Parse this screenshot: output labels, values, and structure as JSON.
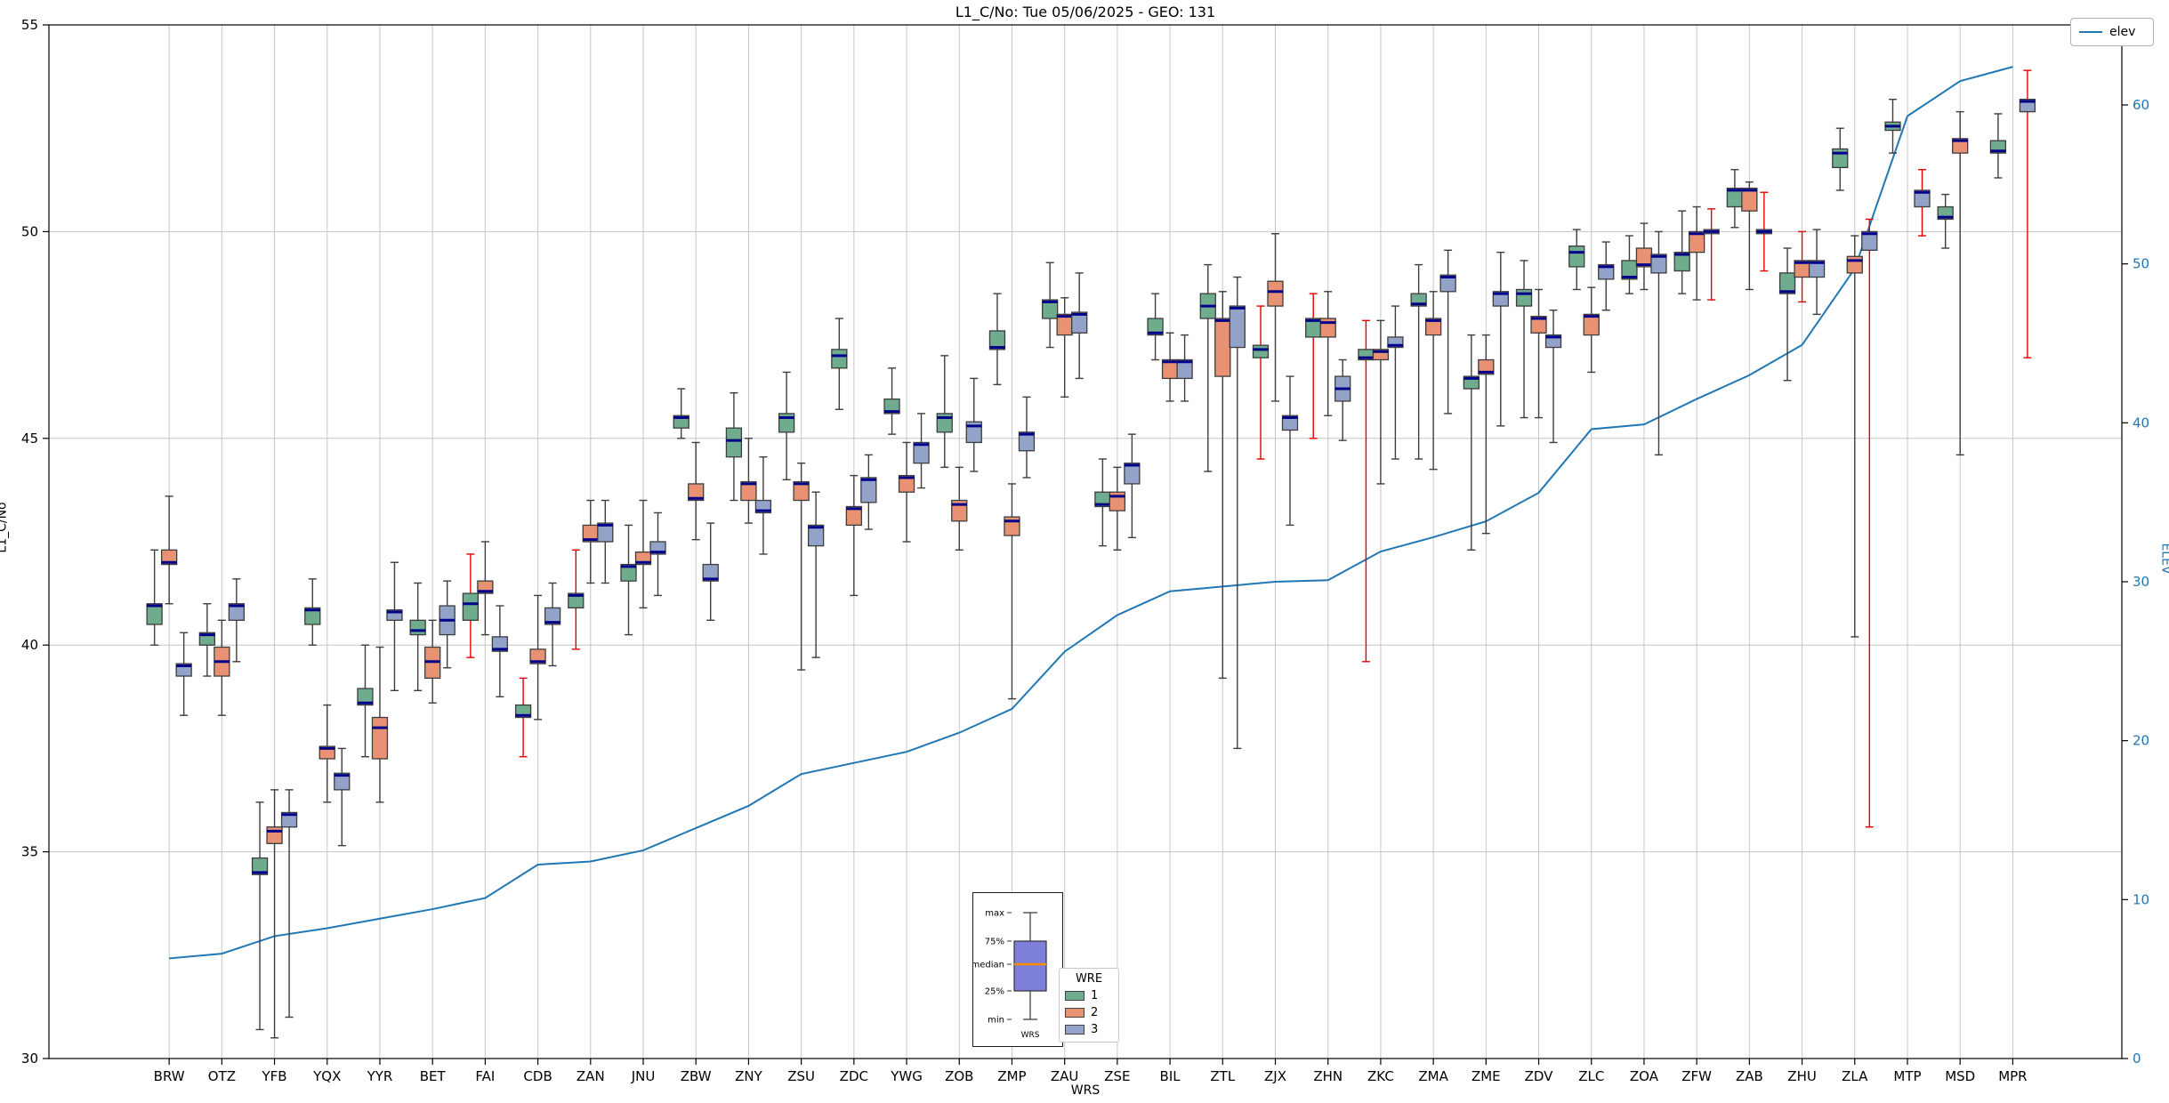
{
  "title": "L1_C/No: Tue 05/06/2025 - GEO: 131",
  "axes": {
    "y_left": {
      "label": "L1_C/No",
      "ticks": [
        30,
        35,
        40,
        45,
        50,
        55
      ],
      "range": [
        30,
        55
      ]
    },
    "y_right": {
      "label": "ELEV",
      "ticks": [
        0,
        10,
        20,
        30,
        40,
        50,
        60
      ],
      "range": [
        0,
        65
      ],
      "color": "#1f77b4"
    },
    "x": {
      "label": "WRS"
    }
  },
  "legend_elev": {
    "label": "elev",
    "line_color": "#1f77b4"
  },
  "legend_wre": {
    "title": "WRE",
    "items": [
      {
        "label": "1",
        "color": "#6fab8d"
      },
      {
        "label": "2",
        "color": "#e99273"
      },
      {
        "label": "3",
        "color": "#93a2c8"
      }
    ]
  },
  "inset": {
    "labels": [
      "max",
      "75%",
      "median",
      "25%",
      "min"
    ],
    "xlabel": "WRS",
    "box_color": "#7e7fd9",
    "median_color": "#ff8c00"
  },
  "chart_data": {
    "type": "boxplot+line",
    "title": "L1_C/No: Tue 05/06/2025 - GEO: 131",
    "xlabel": "WRS",
    "ylabel_left": "L1_C/No",
    "ylabel_right": "ELEV",
    "ylim_left": [
      30,
      55
    ],
    "ylim_right": [
      0,
      65
    ],
    "grid": true,
    "median_color": "#00008b",
    "whisker_color": "#3d3d3d",
    "red_whisker_color": "#e50000",
    "categories": [
      "BRW",
      "OTZ",
      "YFB",
      "YQX",
      "YYR",
      "BET",
      "FAI",
      "CDB",
      "ZAN",
      "JNU",
      "ZBW",
      "ZNY",
      "ZSU",
      "ZDC",
      "YWG",
      "ZOB",
      "ZMP",
      "ZAU",
      "ZSE",
      "BIL",
      "ZTL",
      "ZJX",
      "ZHN",
      "ZKC",
      "ZMA",
      "ZME",
      "ZDV",
      "ZLC",
      "ZOA",
      "ZFW",
      "ZAB",
      "ZHU",
      "ZLA",
      "MTP",
      "MSD",
      "MPR"
    ],
    "series": [
      {
        "name": "1",
        "color": "#6fab8d",
        "red_whisker_categories": [
          "FAI",
          "CDB",
          "ZAN",
          "ZJX",
          "ZHN",
          "ZKC"
        ],
        "boxes": [
          [
            40.0,
            40.5,
            40.95,
            41.0,
            42.3
          ],
          [
            39.25,
            40.0,
            40.25,
            40.3,
            41.0
          ],
          [
            30.7,
            34.45,
            34.5,
            34.85,
            36.2
          ],
          [
            40.0,
            40.5,
            40.85,
            40.9,
            41.6
          ],
          [
            37.3,
            38.55,
            38.6,
            38.95,
            40.0
          ],
          [
            38.9,
            40.25,
            40.35,
            40.6,
            41.5
          ],
          [
            39.7,
            40.6,
            41.0,
            41.25,
            42.2
          ],
          [
            37.3,
            38.25,
            38.3,
            38.55,
            39.2
          ],
          [
            39.9,
            40.9,
            41.2,
            41.25,
            42.3
          ],
          [
            40.25,
            41.55,
            41.9,
            41.95,
            42.9
          ],
          [
            45.0,
            45.25,
            45.5,
            45.55,
            46.2
          ],
          [
            43.5,
            44.55,
            44.95,
            45.25,
            46.1
          ],
          [
            44.0,
            45.15,
            45.5,
            45.6,
            46.6
          ],
          [
            45.7,
            46.7,
            47.0,
            47.15,
            47.9
          ],
          [
            45.1,
            45.6,
            45.65,
            45.95,
            46.7
          ],
          [
            44.3,
            45.15,
            45.5,
            45.6,
            47.0
          ],
          [
            46.3,
            47.15,
            47.2,
            47.6,
            48.5
          ],
          [
            47.2,
            47.9,
            48.3,
            48.35,
            49.25
          ],
          [
            42.4,
            43.35,
            43.4,
            43.7,
            44.5
          ],
          [
            46.9,
            47.5,
            47.55,
            47.9,
            48.5
          ],
          [
            44.2,
            47.9,
            48.2,
            48.5,
            49.2
          ],
          [
            44.5,
            46.95,
            47.15,
            47.25,
            48.2
          ],
          [
            45.0,
            47.45,
            47.85,
            47.9,
            48.5
          ],
          [
            39.6,
            46.9,
            46.95,
            47.15,
            47.85
          ],
          [
            44.5,
            48.2,
            48.25,
            48.5,
            49.2
          ],
          [
            42.3,
            46.2,
            46.45,
            46.5,
            47.5
          ],
          [
            45.5,
            48.2,
            48.5,
            48.6,
            49.3
          ],
          [
            48.6,
            49.15,
            49.5,
            49.65,
            50.05
          ],
          [
            48.5,
            48.85,
            48.9,
            49.3,
            49.9
          ],
          [
            48.5,
            49.05,
            49.45,
            49.5,
            50.5
          ],
          [
            50.1,
            50.6,
            51.0,
            51.05,
            51.5
          ],
          [
            46.4,
            48.5,
            48.55,
            49.0,
            49.6
          ],
          [
            51.0,
            51.55,
            51.9,
            52.0,
            52.5
          ],
          [
            51.9,
            52.45,
            52.55,
            52.65,
            53.2
          ],
          [
            49.6,
            50.3,
            50.35,
            50.6,
            50.9
          ],
          [
            51.3,
            51.9,
            51.95,
            52.2,
            52.85
          ]
        ]
      },
      {
        "name": "2",
        "color": "#e99273",
        "red_whisker_categories": [
          "ZHU"
        ],
        "boxes": [
          [
            41.0,
            41.95,
            42.0,
            42.3,
            43.6
          ],
          [
            38.3,
            39.25,
            39.6,
            39.95,
            40.6
          ],
          [
            30.5,
            35.2,
            35.5,
            35.6,
            36.5
          ],
          [
            36.2,
            37.25,
            37.5,
            37.55,
            38.55
          ],
          [
            36.2,
            37.25,
            38.0,
            38.25,
            39.95
          ],
          [
            38.6,
            39.2,
            39.6,
            39.95,
            40.6
          ],
          [
            40.25,
            41.25,
            41.3,
            41.55,
            42.5
          ],
          [
            38.2,
            39.55,
            39.6,
            39.9,
            41.2
          ],
          [
            41.5,
            42.5,
            42.55,
            42.9,
            43.5
          ],
          [
            40.9,
            41.95,
            42.0,
            42.25,
            43.5
          ],
          [
            42.55,
            43.5,
            43.55,
            43.9,
            44.9
          ],
          [
            42.95,
            43.5,
            43.9,
            43.95,
            45.0
          ],
          [
            39.4,
            43.5,
            43.9,
            43.95,
            44.4
          ],
          [
            41.2,
            42.9,
            43.3,
            43.35,
            44.1
          ],
          [
            42.5,
            43.7,
            44.05,
            44.1,
            44.9
          ],
          [
            42.3,
            43.0,
            43.4,
            43.5,
            44.3
          ],
          [
            38.7,
            42.65,
            43.0,
            43.1,
            43.9
          ],
          [
            46.0,
            47.5,
            47.95,
            48.0,
            48.4
          ],
          [
            42.3,
            43.25,
            43.6,
            43.7,
            44.3
          ],
          [
            45.9,
            46.45,
            46.85,
            46.9,
            47.55
          ],
          [
            39.2,
            46.5,
            47.85,
            47.9,
            48.55
          ],
          [
            45.9,
            48.2,
            48.55,
            48.8,
            49.95
          ],
          [
            45.55,
            47.45,
            47.8,
            47.9,
            48.55
          ],
          [
            43.9,
            46.9,
            47.1,
            47.15,
            47.85
          ],
          [
            44.25,
            47.5,
            47.85,
            47.9,
            48.55
          ],
          [
            42.7,
            46.55,
            46.6,
            46.9,
            47.5
          ],
          [
            45.5,
            47.55,
            47.9,
            47.95,
            48.6
          ],
          [
            46.6,
            47.5,
            47.95,
            48.0,
            48.65
          ],
          [
            48.6,
            49.15,
            49.2,
            49.6,
            50.2
          ],
          [
            48.35,
            49.5,
            49.95,
            50.0,
            50.6
          ],
          [
            48.6,
            50.5,
            51.0,
            51.05,
            51.2
          ],
          [
            48.3,
            48.9,
            49.25,
            49.3,
            50.0
          ],
          [
            40.2,
            49.0,
            49.3,
            49.4,
            49.9
          ],
          null,
          [
            44.6,
            51.9,
            52.2,
            52.25,
            52.9
          ],
          null
        ]
      },
      {
        "name": "3",
        "color": "#93a2c8",
        "red_whisker_categories": [
          "ZFW",
          "ZAB",
          "ZLA",
          "MTP",
          "MPR"
        ],
        "boxes": [
          [
            38.3,
            39.25,
            39.5,
            39.55,
            40.3
          ],
          [
            39.6,
            40.6,
            40.95,
            41.0,
            41.6
          ],
          [
            31.0,
            35.6,
            35.9,
            35.95,
            36.5
          ],
          [
            35.15,
            36.5,
            36.85,
            36.9,
            37.5
          ],
          [
            38.9,
            40.6,
            40.8,
            40.85,
            42.0
          ],
          [
            39.45,
            40.25,
            40.6,
            40.95,
            41.55
          ],
          [
            38.75,
            39.85,
            39.9,
            40.2,
            40.95
          ],
          [
            39.5,
            40.5,
            40.55,
            40.9,
            41.5
          ],
          [
            41.5,
            42.5,
            42.9,
            42.95,
            43.5
          ],
          [
            41.2,
            42.2,
            42.25,
            42.5,
            43.2
          ],
          [
            40.6,
            41.55,
            41.6,
            41.95,
            42.95
          ],
          [
            42.2,
            43.2,
            43.25,
            43.5,
            44.55
          ],
          [
            39.7,
            42.4,
            42.85,
            42.9,
            43.7
          ],
          [
            42.8,
            43.45,
            44.0,
            44.05,
            44.6
          ],
          [
            43.8,
            44.4,
            44.85,
            44.9,
            45.6
          ],
          [
            44.2,
            44.9,
            45.3,
            45.4,
            46.45
          ],
          [
            44.05,
            44.7,
            45.1,
            45.15,
            46.0
          ],
          [
            46.45,
            47.55,
            48.0,
            48.05,
            49.0
          ],
          [
            42.6,
            43.9,
            44.35,
            44.4,
            45.1
          ],
          [
            45.9,
            46.45,
            46.85,
            46.9,
            47.5
          ],
          [
            37.5,
            47.2,
            48.15,
            48.2,
            48.9
          ],
          [
            42.9,
            45.2,
            45.5,
            45.55,
            46.5
          ],
          [
            44.95,
            45.9,
            46.2,
            46.5,
            46.9
          ],
          [
            44.5,
            47.2,
            47.25,
            47.45,
            48.2
          ],
          [
            45.6,
            48.55,
            48.9,
            48.95,
            49.55
          ],
          [
            45.3,
            48.2,
            48.5,
            48.55,
            49.5
          ],
          [
            44.9,
            47.2,
            47.45,
            47.5,
            48.1
          ],
          [
            48.1,
            48.85,
            49.15,
            49.2,
            49.75
          ],
          [
            44.6,
            49.0,
            49.4,
            49.45,
            50.0
          ],
          [
            48.35,
            49.95,
            50.0,
            50.05,
            50.55
          ],
          [
            49.05,
            49.95,
            50.0,
            50.05,
            50.95
          ],
          [
            48.0,
            48.9,
            49.25,
            49.3,
            50.05
          ],
          [
            35.6,
            49.55,
            49.95,
            50.0,
            50.3
          ],
          [
            49.9,
            50.6,
            50.95,
            51.0,
            51.5
          ],
          null,
          [
            46.95,
            52.9,
            53.15,
            53.2,
            53.9
          ]
        ]
      }
    ],
    "elev": {
      "name": "elev",
      "color": "#1f77b4",
      "values": [
        6.3,
        6.6,
        7.7,
        8.2,
        8.8,
        9.4,
        10.1,
        12.2,
        12.4,
        13.1,
        14.5,
        15.9,
        17.9,
        18.6,
        19.3,
        20.5,
        22.0,
        25.6,
        27.9,
        29.4,
        29.7,
        30.0,
        30.1,
        31.9,
        32.8,
        33.8,
        35.6,
        39.6,
        39.9,
        41.5,
        43.0,
        44.9,
        49.7,
        59.3,
        61.5,
        62.4
      ]
    }
  }
}
